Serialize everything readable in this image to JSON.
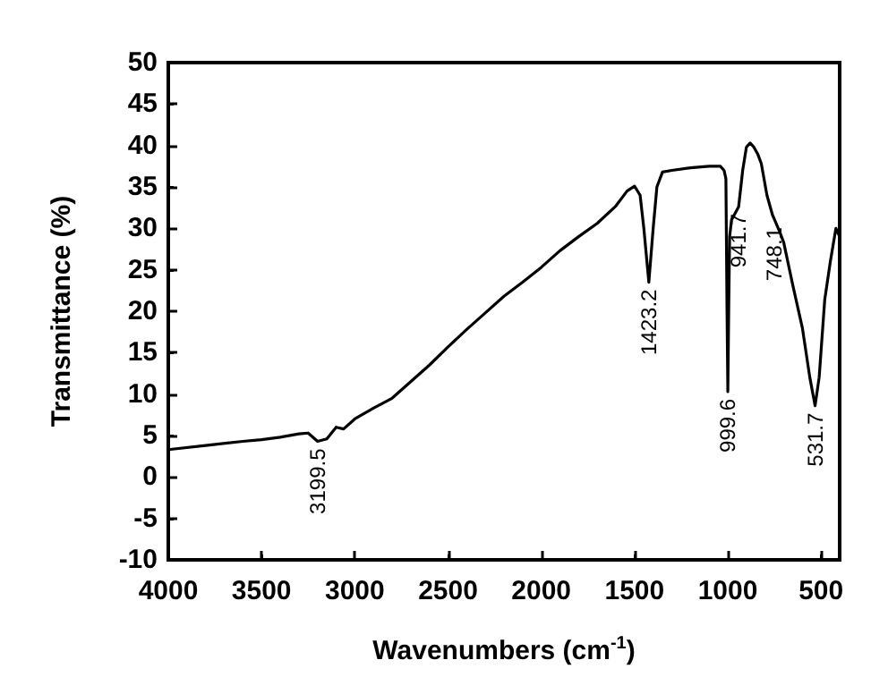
{
  "chart_data": {
    "type": "line",
    "xlabel": "Wavenumbers (cm$^{-1}$)",
    "ylabel": "Transmittance (%)",
    "x": [
      4000,
      3800,
      3600,
      3500,
      3400,
      3300,
      3250,
      3199.5,
      3150,
      3100,
      3060,
      3000,
      2900,
      2800,
      2700,
      2600,
      2500,
      2400,
      2300,
      2200,
      2100,
      2000,
      1900,
      1800,
      1700,
      1600,
      1540,
      1500,
      1470,
      1450,
      1423.2,
      1400,
      1380,
      1350,
      1300,
      1200,
      1100,
      1040,
      1020,
      1010,
      1004,
      999.6,
      995,
      990,
      980,
      941.7,
      920,
      900,
      880,
      860,
      840,
      820,
      790,
      760,
      748.1,
      720,
      700,
      650,
      600,
      560,
      531.7,
      510,
      480,
      450,
      420,
      400
    ],
    "series": [
      {
        "color": "#000000",
        "values": [
          3.3,
          3.8,
          4.3,
          4.5,
          4.8,
          5.2,
          5.3,
          4.3,
          4.6,
          6,
          5.8,
          7,
          8.3,
          9.5,
          11.5,
          13.5,
          15.7,
          17.8,
          19.8,
          21.8,
          23.5,
          25.3,
          27.3,
          29,
          30.6,
          32.7,
          34.5,
          35.1,
          34,
          30,
          23.5,
          30,
          35,
          36.8,
          37,
          37.3,
          37.5,
          37.5,
          37,
          36,
          20,
          10.3,
          20,
          29,
          31,
          32.6,
          37,
          39.8,
          40.3,
          39.8,
          39,
          37.8,
          34,
          31.6,
          31,
          29.5,
          28.3,
          23,
          18,
          12,
          8.6,
          12,
          21.4,
          26,
          30,
          29
        ]
      }
    ],
    "xlim": [
      4000,
      400
    ],
    "xticks": [
      4000,
      3500,
      3000,
      2500,
      2000,
      1500,
      1000,
      500
    ],
    "ylim": [
      -10,
      50
    ],
    "yticks": [
      -10,
      -5,
      0,
      5,
      10,
      15,
      20,
      25,
      30,
      35,
      40,
      45,
      50
    ],
    "grid": false,
    "marker": "none",
    "line_style": "solid",
    "annotations": [
      {
        "text": "3199.5",
        "x": 3199.5,
        "y": 4.3
      },
      {
        "text": "1423.2",
        "x": 1423.2,
        "y": 23.5
      },
      {
        "text": "999.6",
        "x": 999.6,
        "y": 10.3
      },
      {
        "text": "941.7",
        "x": 941.7,
        "y": 32.6
      },
      {
        "text": "748.1",
        "x": 748.1,
        "y": 31
      },
      {
        "text": "531.7",
        "x": 531.7,
        "y": 8.6
      }
    ]
  }
}
